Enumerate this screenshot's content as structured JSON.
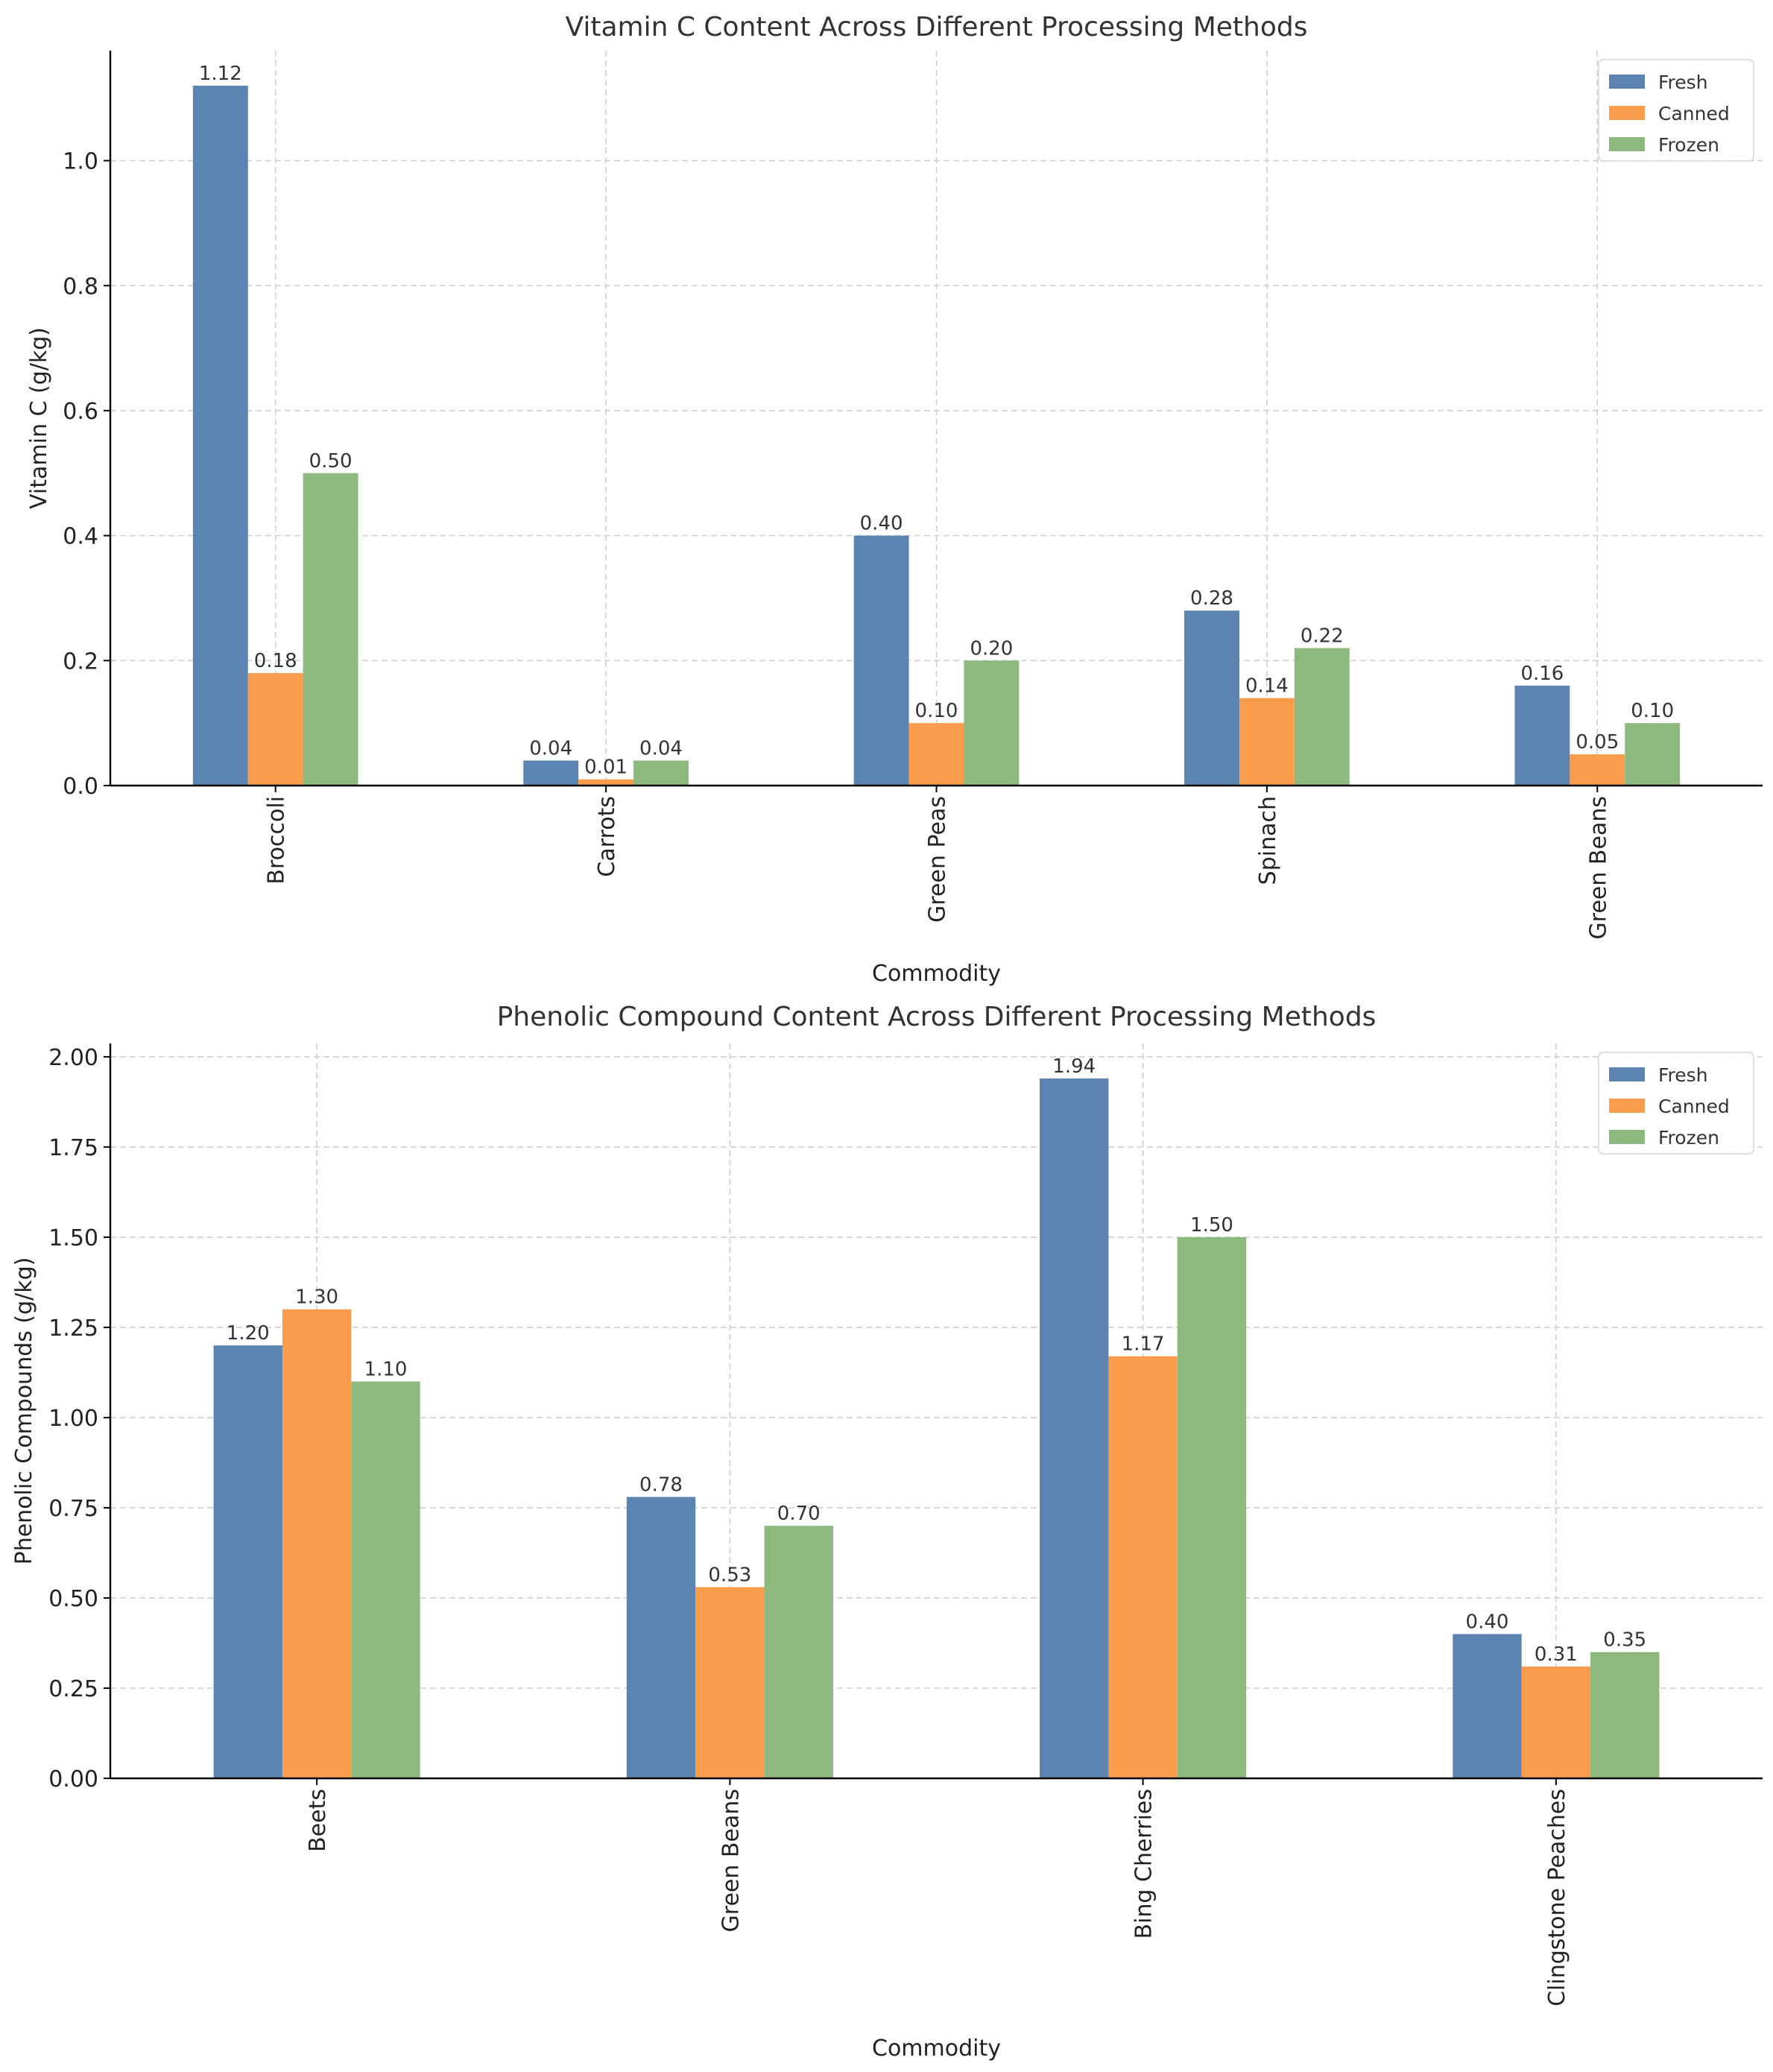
{
  "chart_data": [
    {
      "type": "bar",
      "title": "Vitamin C Content Across Different Processing Methods",
      "xlabel": "Commodity",
      "ylabel": "Vitamin C (g/kg)",
      "categories": [
        "Broccoli",
        "Carrots",
        "Green Peas",
        "Spinach",
        "Green Beans"
      ],
      "series": [
        {
          "name": "Fresh",
          "color": "#5b84b1",
          "values": [
            1.12,
            0.04,
            0.4,
            0.28,
            0.16
          ]
        },
        {
          "name": "Canned",
          "color": "#f99d4c",
          "values": [
            0.18,
            0.01,
            0.1,
            0.14,
            0.05
          ]
        },
        {
          "name": "Frozen",
          "color": "#8db97e",
          "values": [
            0.5,
            0.04,
            0.2,
            0.22,
            0.1
          ]
        }
      ],
      "ylim": [
        0,
        1.176
      ],
      "yticks": [
        0.0,
        0.2,
        0.4,
        0.6,
        0.8,
        1.0
      ],
      "ytick_labels": [
        "0.0",
        "0.2",
        "0.4",
        "0.6",
        "0.8",
        "1.0"
      ],
      "grid": true,
      "legend_position": "top-right"
    },
    {
      "type": "bar",
      "title": "Phenolic Compound Content Across Different Processing Methods",
      "xlabel": "Commodity",
      "ylabel": "Phenolic Compounds (g/kg)",
      "categories": [
        "Beets",
        "Green Beans",
        "Bing Cherries",
        "Clingstone Peaches"
      ],
      "series": [
        {
          "name": "Fresh",
          "color": "#5b84b1",
          "values": [
            1.2,
            0.78,
            1.94,
            0.4
          ]
        },
        {
          "name": "Canned",
          "color": "#f99d4c",
          "values": [
            1.3,
            0.53,
            1.17,
            0.31
          ]
        },
        {
          "name": "Frozen",
          "color": "#8db97e",
          "values": [
            1.1,
            0.7,
            1.5,
            0.35
          ]
        }
      ],
      "ylim": [
        0,
        2.037
      ],
      "yticks": [
        0.0,
        0.25,
        0.5,
        0.75,
        1.0,
        1.25,
        1.5,
        1.75,
        2.0
      ],
      "ytick_labels": [
        "0.00",
        "0.25",
        "0.50",
        "0.75",
        "1.00",
        "1.25",
        "1.50",
        "1.75",
        "2.00"
      ],
      "grid": true,
      "legend_position": "top-right"
    }
  ]
}
